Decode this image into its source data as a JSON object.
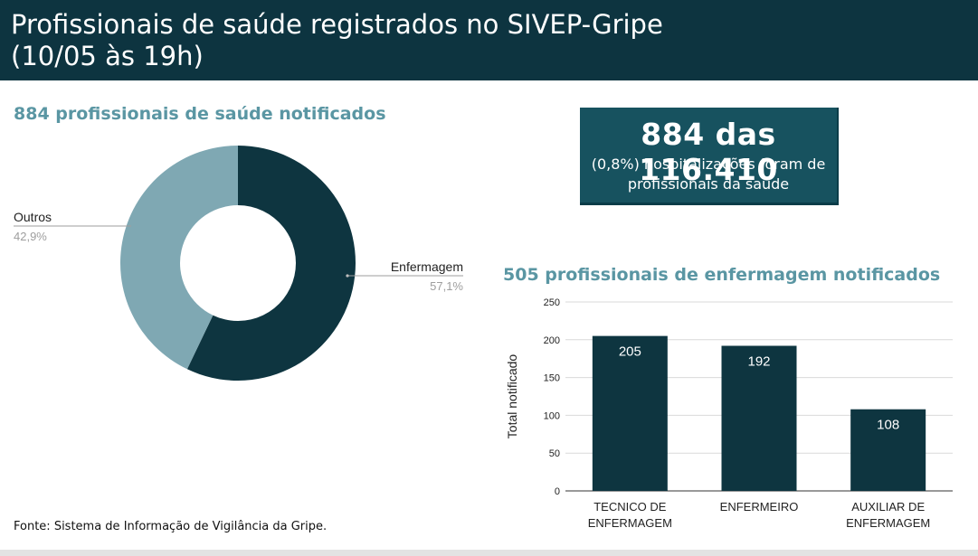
{
  "header": {
    "title_line1": "Profissionais de saúde registrados no SIVEP-Gripe",
    "title_line2": "(10/05 às 19h)"
  },
  "stat_box": {
    "headline": "884 das 116.410",
    "detail_line1": "(0,8%) hospitalizações foram de",
    "detail_line2": "profissionais da saúde"
  },
  "source": "Fonte: Sistema de Informação de Vigilância da Gripe.",
  "colors": {
    "header_bg": "#0d3440",
    "dark_teal": "#0e3540",
    "light_teal": "#7fa8b3",
    "title_teal": "#5a96a3",
    "box_bg": "#17525f"
  },
  "chart_data": [
    {
      "type": "pie",
      "title": "884 profissionais de saúde notificados",
      "donut": true,
      "slices": [
        {
          "label": "Enfermagem",
          "value": 57.1,
          "display": "57,1%",
          "color": "#0e3540"
        },
        {
          "label": "Outros",
          "value": 42.9,
          "display": "42,9%",
          "color": "#7fa8b3"
        }
      ]
    },
    {
      "type": "bar",
      "title": "505 profissionais de enfermagem notificados",
      "ylabel": "Total notificado",
      "ylim": [
        0,
        250
      ],
      "yticks": [
        "0",
        "50",
        "100",
        "150",
        "200",
        "250"
      ],
      "ytick_values": [
        0,
        50,
        100,
        150,
        200,
        250
      ],
      "grid": true,
      "categories": [
        [
          "TECNICO DE",
          "ENFERMAGEM"
        ],
        [
          "ENFERMEIRO"
        ],
        [
          "AUXILIAR DE",
          "ENFERMAGEM"
        ]
      ],
      "values": [
        205,
        192,
        108
      ],
      "value_labels": [
        "205",
        "192",
        "108"
      ],
      "color": "#0e3540"
    }
  ]
}
